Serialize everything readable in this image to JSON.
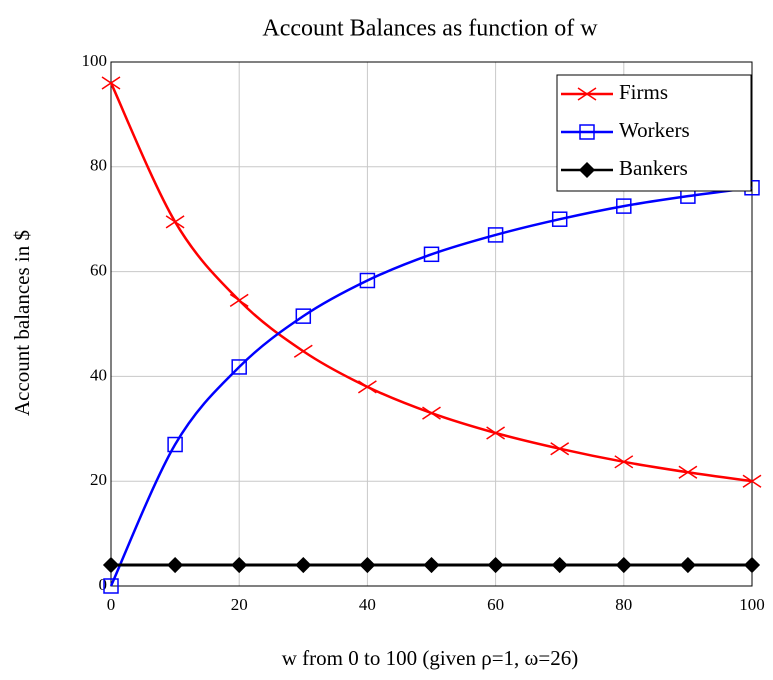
{
  "chart_data": {
    "type": "line",
    "title": "Account Balances as function of w",
    "x_label": "w from 0 to 100 (given ρ=1, ω=26)",
    "y_label": "Account balances in $",
    "x": [
      0,
      10,
      20,
      30,
      40,
      50,
      60,
      70,
      80,
      90,
      100
    ],
    "series": [
      {
        "name": "Firms",
        "color": "#ff0000",
        "marker": "x",
        "values": [
          96,
          69.5,
          54.5,
          44.8,
          38,
          33,
          29.2,
          26.2,
          23.7,
          21.7,
          20
        ]
      },
      {
        "name": "Workers",
        "color": "#0000ff",
        "marker": "square",
        "values": [
          0,
          27,
          41.8,
          51.5,
          58.3,
          63.3,
          67,
          70,
          72.5,
          74.4,
          76
        ]
      },
      {
        "name": "Bankers",
        "color": "#000000",
        "marker": "diamond",
        "values": [
          4,
          4,
          4,
          4,
          4,
          4,
          4,
          4,
          4,
          4,
          4
        ]
      }
    ],
    "xlim": [
      0,
      100
    ],
    "xticks": [
      0,
      20,
      40,
      60,
      80,
      100
    ],
    "ylim": [
      0,
      100
    ],
    "yticks": [
      0,
      20,
      40,
      60,
      80,
      100
    ],
    "grid": true,
    "legend": "upper right"
  }
}
